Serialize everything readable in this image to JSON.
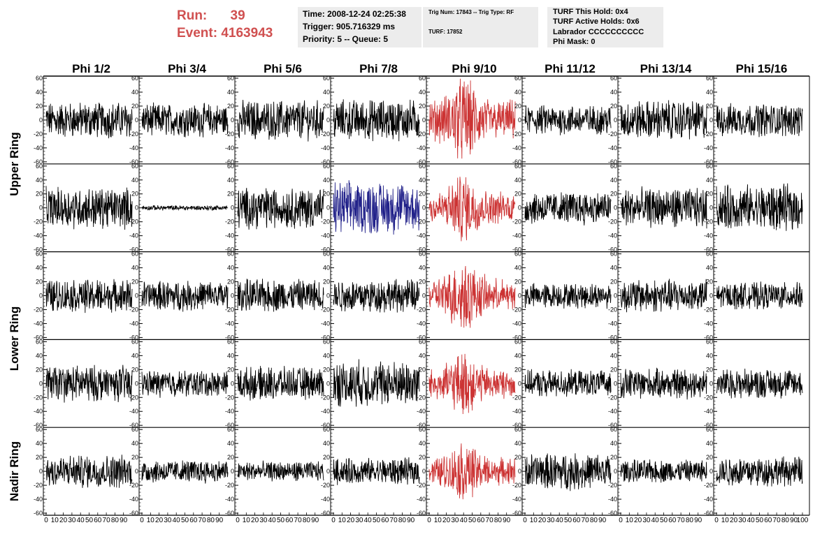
{
  "header": {
    "run_label": "Run:",
    "run_value": "39",
    "event_label": "Event:",
    "event_value": "4163943",
    "time": "Time: 2008-12-24 02:25:38",
    "trigger": "Trigger: 905.716329 ms",
    "priority": "Priority: 5 -- Queue: 5",
    "trig_num": "Trig Num: 17843 -- Trig Type: RF",
    "turf": "TURF: 17852",
    "turf_this_hold": "TURF This Hold: 0x4",
    "turf_active_holds": "TURF Active Holds: 0x6",
    "labrador": "Labrador CCCCCCCCCC",
    "phi_mask": "Phi Mask: 0"
  },
  "chart_data": {
    "type": "line",
    "columns": [
      "Phi 1/2",
      "Phi 3/4",
      "Phi 5/6",
      "Phi 7/8",
      "Phi 9/10",
      "Phi 11/12",
      "Phi 13/14",
      "Phi 15/16"
    ],
    "ring_labels": [
      "Upper Ring",
      "Lower Ring",
      "Nadir Ring"
    ],
    "rows": 5,
    "xlim": [
      0,
      100
    ],
    "ylim": [
      -60,
      60
    ],
    "y_ticks": [
      -60,
      -40,
      -20,
      0,
      20,
      40,
      60
    ],
    "x_ticks": [
      0,
      10,
      20,
      30,
      40,
      50,
      60,
      70,
      80,
      90,
      100
    ],
    "colors": {
      "default": "#000000",
      "triggered": "#cc3333",
      "highlight": "#22228a"
    },
    "panels": [
      [
        {
          "amp": 22,
          "color": "default"
        },
        {
          "amp": 20,
          "color": "default"
        },
        {
          "amp": 24,
          "color": "default"
        },
        {
          "amp": 25,
          "color": "default"
        },
        {
          "amp": 38,
          "color": "triggered"
        },
        {
          "amp": 18,
          "color": "default"
        },
        {
          "amp": 24,
          "color": "default"
        },
        {
          "amp": 20,
          "color": "default"
        }
      ],
      [
        {
          "amp": 25,
          "color": "default"
        },
        {
          "amp": 3,
          "color": "default"
        },
        {
          "amp": 25,
          "color": "default"
        },
        {
          "amp": 32,
          "color": "highlight"
        },
        {
          "amp": 30,
          "color": "triggered"
        },
        {
          "amp": 20,
          "color": "default"
        },
        {
          "amp": 24,
          "color": "default"
        },
        {
          "amp": 28,
          "color": "default"
        }
      ],
      [
        {
          "amp": 20,
          "color": "default"
        },
        {
          "amp": 18,
          "color": "default"
        },
        {
          "amp": 20,
          "color": "default"
        },
        {
          "amp": 20,
          "color": "default"
        },
        {
          "amp": 32,
          "color": "triggered"
        },
        {
          "amp": 15,
          "color": "default"
        },
        {
          "amp": 20,
          "color": "default"
        },
        {
          "amp": 16,
          "color": "default"
        }
      ],
      [
        {
          "amp": 22,
          "color": "default"
        },
        {
          "amp": 16,
          "color": "default"
        },
        {
          "amp": 20,
          "color": "default"
        },
        {
          "amp": 28,
          "color": "default"
        },
        {
          "amp": 28,
          "color": "triggered"
        },
        {
          "amp": 16,
          "color": "default"
        },
        {
          "amp": 18,
          "color": "default"
        },
        {
          "amp": 18,
          "color": "default"
        }
      ],
      [
        {
          "amp": 20,
          "color": "default"
        },
        {
          "amp": 14,
          "color": "default"
        },
        {
          "amp": 12,
          "color": "default"
        },
        {
          "amp": 16,
          "color": "default"
        },
        {
          "amp": 26,
          "color": "triggered"
        },
        {
          "amp": 22,
          "color": "default"
        },
        {
          "amp": 14,
          "color": "default"
        },
        {
          "amp": 18,
          "color": "default"
        }
      ]
    ]
  }
}
